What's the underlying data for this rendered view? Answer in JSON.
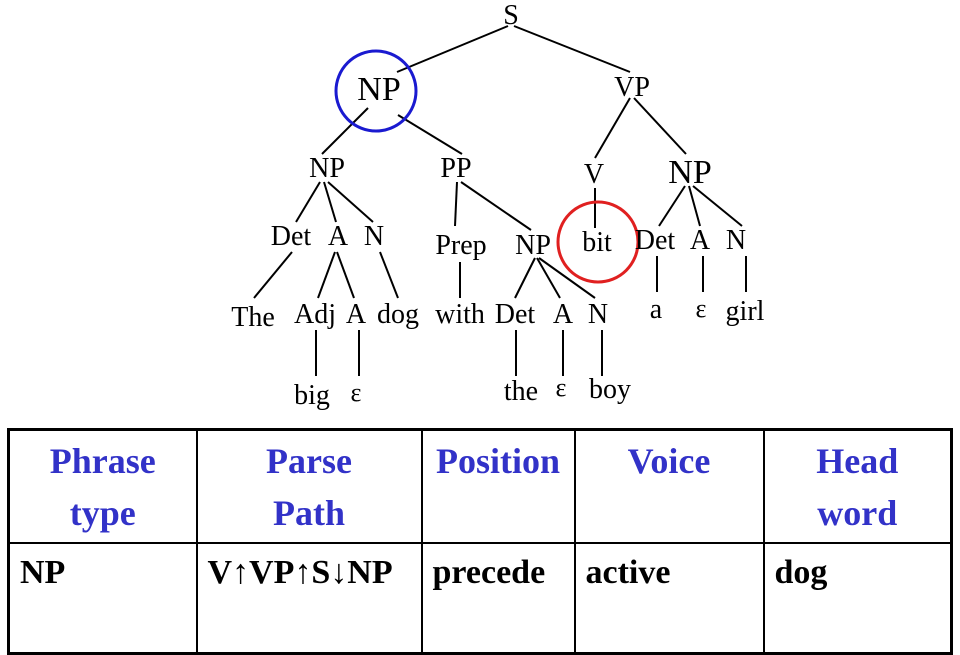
{
  "tree": {
    "nodes": {
      "S": "S",
      "NP_subj": "NP",
      "VP": "VP",
      "NP_inner": "NP",
      "PP": "PP",
      "V": "V",
      "NP_obj": "NP",
      "Det1": "Det",
      "A1": "A",
      "N1": "N",
      "Prep": "Prep",
      "NP_pp": "NP",
      "bit": "bit",
      "Det3": "Det",
      "A3": "A",
      "N3": "N",
      "The": "The",
      "Adj": "Adj",
      "A1b": "A",
      "dog": "dog",
      "with": "with",
      "Det2": "Det",
      "A2": "A",
      "N2": "N",
      "a": "a",
      "eps3": "ε",
      "girl": "girl",
      "big": "big",
      "eps1": "ε",
      "the": "the",
      "eps2": "ε",
      "boy": "boy"
    },
    "highlight_colors": {
      "subject_np": "#1a1ad0",
      "predicate": "#e02020"
    }
  },
  "table": {
    "headers": [
      {
        "line1": "Phrase",
        "line2": "type"
      },
      {
        "line1": "Parse",
        "line2": "Path"
      },
      {
        "line1": "Position",
        "line2": ""
      },
      {
        "line1": "Voice",
        "line2": ""
      },
      {
        "line1": "Head",
        "line2": "word"
      }
    ],
    "row": [
      "NP",
      "V↑VP↑S↓NP",
      "precede",
      "active",
      "dog"
    ],
    "header_color": "#3232c8"
  }
}
